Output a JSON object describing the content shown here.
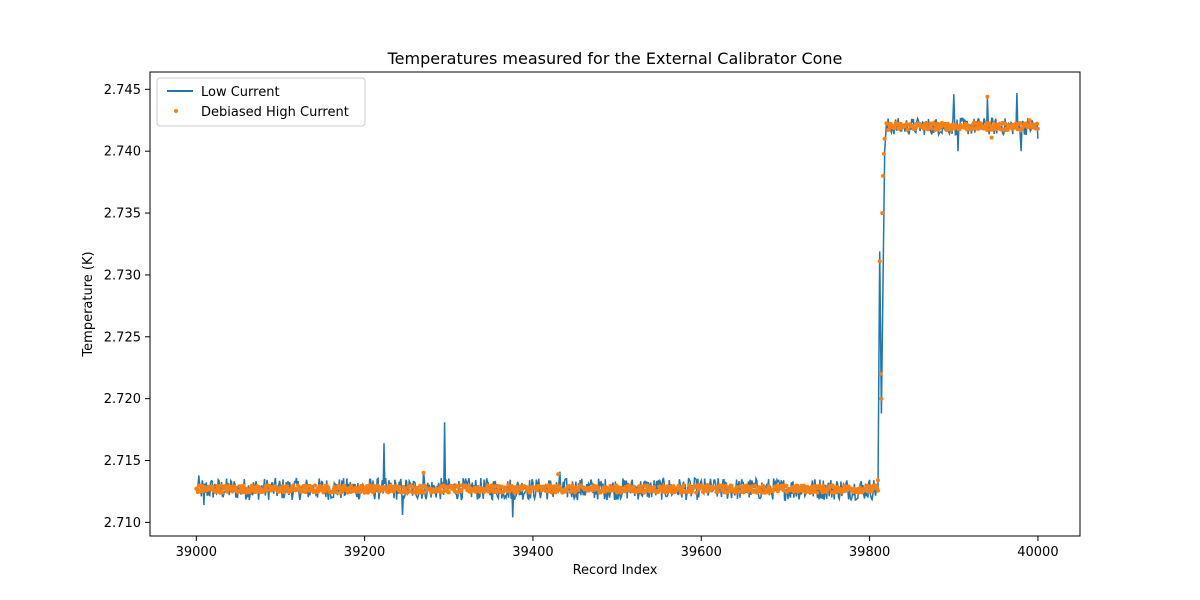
{
  "chart_data": {
    "type": "line",
    "title": "Temperatures measured for the External Calibrator Cone",
    "xlabel": "Record Index",
    "ylabel": "Temperature (K)",
    "xlim": [
      38945,
      40050
    ],
    "ylim": [
      2.7089,
      2.7464
    ],
    "xticks": [
      39000,
      39200,
      39400,
      39600,
      39800,
      40000
    ],
    "yticks": [
      2.71,
      2.715,
      2.72,
      2.725,
      2.73,
      2.735,
      2.74,
      2.745
    ],
    "ytick_decimals": 3,
    "grid": false,
    "legend_position": "top-left",
    "series": [
      {
        "name": "Low Current",
        "style": "line",
        "color": "#1f77b4",
        "segments": [
          {
            "x_start": 39000,
            "x_end": 39810,
            "step": 1,
            "level": 2.7127,
            "noise": 0.0009,
            "bias": 0.0
          },
          {
            "x_start": 39811,
            "x_end": 39819,
            "step": 1,
            "level": 2.7127,
            "noise": 0.0,
            "bias": 0.0,
            "ramp_to": 2.742
          }
        ],
        "points": [
          {
            "x": 39000,
            "y": 2.7127
          },
          {
            "x": 39003,
            "y": 2.7138
          },
          {
            "x": 39009,
            "y": 2.7114
          },
          {
            "x": 39220,
            "y": 2.7128
          },
          {
            "x": 39223,
            "y": 2.7164
          },
          {
            "x": 39226,
            "y": 2.7127
          },
          {
            "x": 39245,
            "y": 2.7106
          },
          {
            "x": 39270,
            "y": 2.7141
          },
          {
            "x": 39292,
            "y": 2.7128
          },
          {
            "x": 39295,
            "y": 2.7181
          },
          {
            "x": 39298,
            "y": 2.7127
          },
          {
            "x": 39376,
            "y": 2.7104
          },
          {
            "x": 39432,
            "y": 2.7141
          },
          {
            "x": 39810,
            "y": 2.7127
          },
          {
            "x": 39812,
            "y": 2.7319
          },
          {
            "x": 39814,
            "y": 2.7188
          },
          {
            "x": 39816,
            "y": 2.73
          },
          {
            "x": 39818,
            "y": 2.74
          },
          {
            "x": 39820,
            "y": 2.7422
          },
          {
            "x": 39900,
            "y": 2.7446
          },
          {
            "x": 39905,
            "y": 2.74
          },
          {
            "x": 39940,
            "y": 2.7443
          },
          {
            "x": 39975,
            "y": 2.7447
          },
          {
            "x": 39980,
            "y": 2.74
          },
          {
            "x": 40000,
            "y": 2.741
          }
        ],
        "upper_plateau": {
          "x_start": 39820,
          "x_end": 40000,
          "level": 2.742,
          "noise": 0.0007
        }
      },
      {
        "name": "Debiased High Current",
        "style": "scatter",
        "color": "#ff7f0e",
        "lower_plateau": {
          "x_start": 39000,
          "x_end": 39810,
          "level": 2.7127,
          "noise": 0.0003
        },
        "transition": [
          {
            "x": 39812,
            "y": 2.7311
          },
          {
            "x": 39813,
            "y": 2.722
          },
          {
            "x": 39814,
            "y": 2.72
          },
          {
            "x": 39815,
            "y": 2.735
          },
          {
            "x": 39816,
            "y": 2.738
          },
          {
            "x": 39817,
            "y": 2.7398
          },
          {
            "x": 39818,
            "y": 2.741
          }
        ],
        "outliers": [
          {
            "x": 39270,
            "y": 2.714
          },
          {
            "x": 39430,
            "y": 2.7139
          },
          {
            "x": 39810,
            "y": 2.7134
          },
          {
            "x": 39940,
            "y": 2.7444
          },
          {
            "x": 39945,
            "y": 2.7411
          },
          {
            "x": 39990,
            "y": 2.7425
          }
        ],
        "upper_plateau": {
          "x_start": 39820,
          "x_end": 40000,
          "level": 2.742,
          "noise": 0.0003
        }
      }
    ]
  }
}
